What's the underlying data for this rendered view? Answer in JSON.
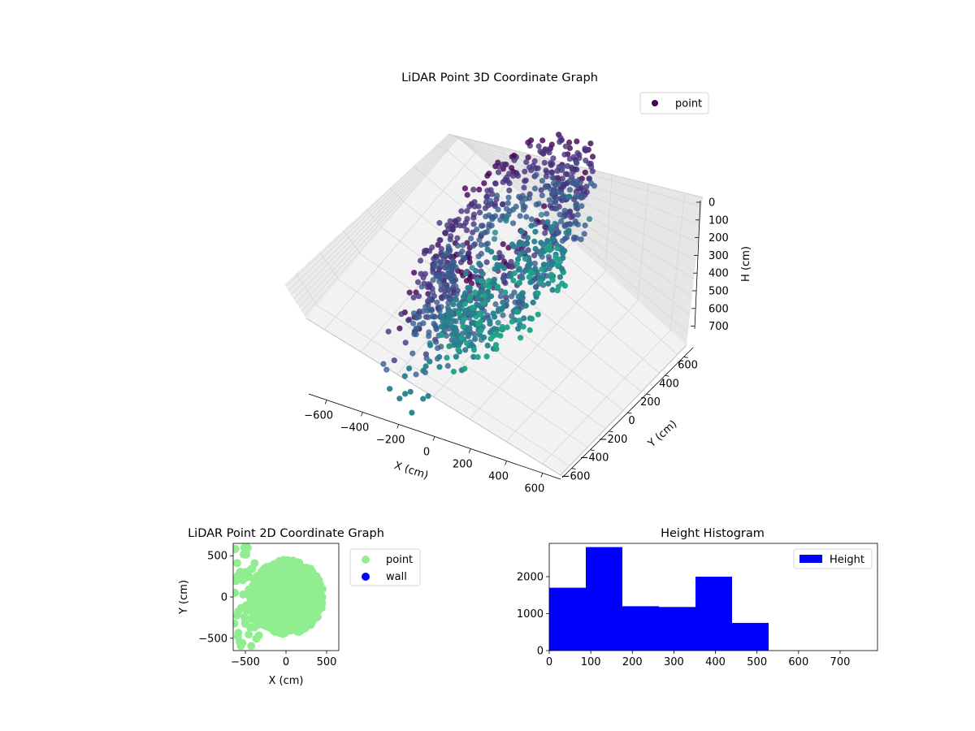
{
  "chart_data": [
    {
      "type": "scatter",
      "projection": "3d",
      "title": "LiDAR Point 3D Coordinate Graph",
      "xlabel": "X (cm)",
      "ylabel": "Y (cm)",
      "zlabel": "H (cm)",
      "xlim": [
        -700,
        700
      ],
      "ylim": [
        -700,
        700
      ],
      "zlim": [
        780,
        0
      ],
      "z_inverted": true,
      "x_ticks": [
        "−600",
        "−400",
        "−200",
        "0",
        "200",
        "400",
        "600"
      ],
      "y_ticks": [
        "−600",
        "−400",
        "−200",
        "0",
        "200",
        "400",
        "600"
      ],
      "z_ticks": [
        "0",
        "100",
        "200",
        "300",
        "400",
        "500",
        "600",
        "700"
      ],
      "colormap": "viridis",
      "grid": true,
      "legend": {
        "placement": "top-right",
        "entries": [
          "point"
        ]
      },
      "series": [
        {
          "name": "point",
          "color": "#440154",
          "shape": "ring of points around the origin (radius about 250–450 cm, height 0–600 cm, darker points at top, teal points near 550–600 cm) plus sparse scattered points extending toward x = −650 cm"
        }
      ]
    },
    {
      "type": "scatter",
      "title": "LiDAR Point 2D Coordinate Graph",
      "xlabel": "X (cm)",
      "ylabel": "Y (cm)",
      "xlim": [
        -650,
        650
      ],
      "ylim": [
        -650,
        650
      ],
      "x_ticks": [
        "−500",
        "0",
        "500"
      ],
      "y_ticks": [
        "−500",
        "0",
        "500"
      ],
      "legend": {
        "placement": "outside-right",
        "entries": [
          "point",
          "wall"
        ]
      },
      "series": [
        {
          "name": "point",
          "color": "#90ee90"
        },
        {
          "name": "wall",
          "color": "#0000ff"
        }
      ]
    },
    {
      "type": "bar",
      "subtype": "histogram",
      "title": "Height Histogram",
      "xlim": [
        0,
        790
      ],
      "ylim": [
        0,
        2900
      ],
      "x_ticks": [
        "0",
        "100",
        "200",
        "300",
        "400",
        "500",
        "600",
        "700"
      ],
      "y_ticks": [
        "0",
        "1000",
        "2000"
      ],
      "bin_edges": [
        0,
        88,
        176,
        264,
        352,
        440,
        528,
        616,
        704,
        792
      ],
      "values": [
        1700,
        2800,
        1200,
        1180,
        2000,
        750,
        0,
        0,
        0
      ],
      "color": "#0000ff",
      "legend": {
        "placement": "top-right",
        "entries": [
          "Height"
        ]
      },
      "series": [
        {
          "name": "Height",
          "values": [
            1700,
            2800,
            1200,
            1180,
            2000,
            750,
            0,
            0,
            0
          ]
        }
      ]
    }
  ]
}
